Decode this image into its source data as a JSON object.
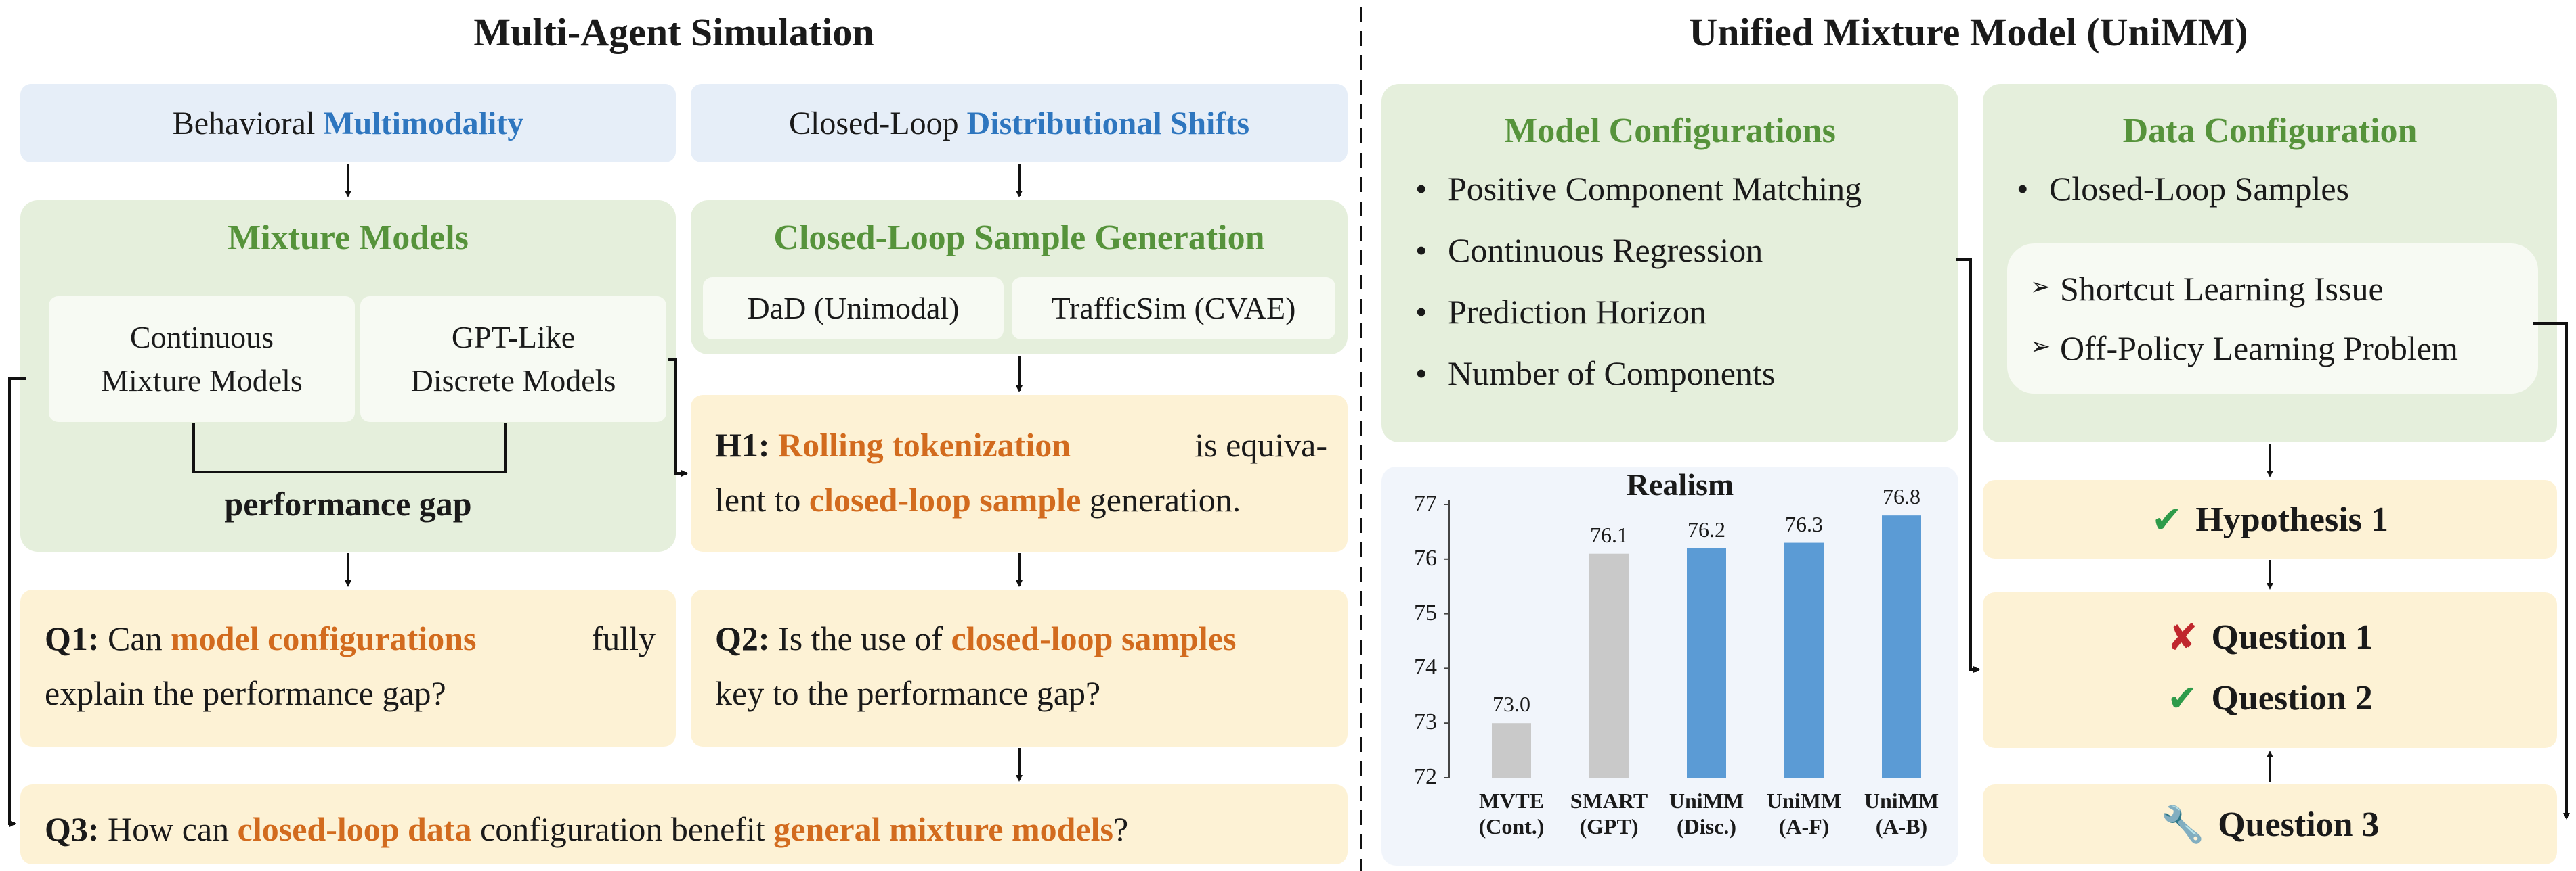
{
  "left": {
    "title": "Multi-Agent Simulation",
    "behavioral": {
      "prefix": "Behavioral ",
      "highlight": "Multimodality"
    },
    "closed_loop": {
      "prefix": "Closed-Loop ",
      "highlight": "Distributional Shifts"
    },
    "mixture_models": {
      "title": "Mixture Models",
      "box1_line1": "Continuous",
      "box1_line2": "Mixture Models",
      "box2_line1": "GPT-Like",
      "box2_line2": "Discrete Models",
      "gap_label": "performance gap"
    },
    "sample_generation": {
      "title": "Closed-Loop Sample Generation",
      "box1": "DaD (Unimodal)",
      "box2": "TrafficSim (CVAE)"
    },
    "h1": {
      "label": "H1: ",
      "rolling": "Rolling tokenization",
      "mid1": " is equiva-",
      "mid2": "lent to ",
      "closed": "closed-loop sample",
      "end": " generation."
    },
    "q1": {
      "label": "Q1: ",
      "pre": "Can ",
      "highlight": "model configurations",
      "mid": " fully",
      "line2": "explain the performance gap?"
    },
    "q2": {
      "label": "Q2: ",
      "pre": "Is the use of ",
      "highlight": "closed-loop samples",
      "line2": "key to the performance gap?"
    },
    "q3": {
      "label": "Q3: ",
      "pre": "How can ",
      "highlight1": "closed-loop data",
      "mid": " configuration benefit ",
      "highlight2": "general mixture models",
      "end": "?"
    }
  },
  "right": {
    "title": "Unified Mixture Model (UniMM)",
    "model_config": {
      "title": "Model Configurations",
      "items": [
        "Positive Component Matching",
        "Continuous Regression",
        "Prediction Horizon",
        "Number of Components"
      ]
    },
    "data_config": {
      "title": "Data Configuration",
      "bullet": "Closed-Loop Samples",
      "sub_items": [
        "Shortcut Learning Issue",
        "Off-Policy Learning Problem"
      ]
    },
    "hypothesis1": "Hypothesis 1",
    "question1": "Question 1",
    "question2": "Question 2",
    "question3": "Question 3",
    "icons": {
      "check": "check-icon",
      "cross": "cross-icon",
      "wrench": "wrench-icon"
    }
  },
  "chart_data": {
    "type": "bar",
    "title": "Realism",
    "categories": [
      "MVTE (Cont.)",
      "SMART (GPT)",
      "UniMM (Disc.)",
      "UniMM (A-F)",
      "UniMM (A-B)"
    ],
    "category_lines": [
      [
        "MVTE",
        "(Cont.)"
      ],
      [
        "SMART",
        "(GPT)"
      ],
      [
        "UniMM",
        "(Disc.)"
      ],
      [
        "UniMM",
        "(A-F)"
      ],
      [
        "UniMM",
        "(A-B)"
      ]
    ],
    "values": [
      73.0,
      76.1,
      76.2,
      76.3,
      76.8
    ],
    "value_labels": [
      "73.0",
      "76.1",
      "76.2",
      "76.3",
      "76.8"
    ],
    "bar_colors": [
      "#c9c9c9",
      "#c9c9c9",
      "#5b9bd5",
      "#5b9bd5",
      "#5b9bd5"
    ],
    "ylim": [
      72,
      77
    ],
    "yticks": [
      "72",
      "73",
      "74",
      "75",
      "76",
      "77"
    ],
    "xlabel": "",
    "ylabel": "",
    "grid": false
  },
  "colors": {
    "green_title": "#56933b",
    "blue_highlight": "#2e76bf",
    "orange_highlight": "#d26b1e",
    "blue_bar": "#5b9bd5",
    "gray_bar": "#c9c9c9"
  }
}
